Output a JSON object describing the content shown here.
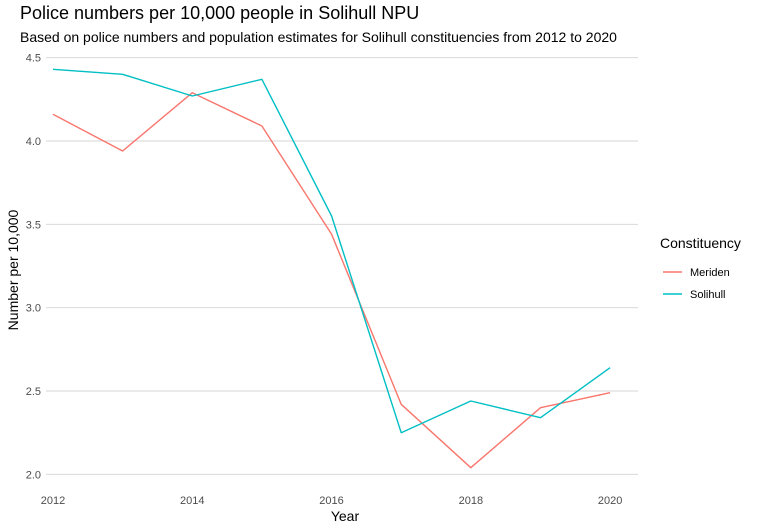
{
  "chart_data": {
    "type": "line",
    "title": "Police numbers per 10,000 people in Solihull NPU",
    "subtitle": "Based on police numbers and population estimates for Solihull constituencies from 2012 to 2020",
    "xlabel": "Year",
    "ylabel": "Number per 10,000",
    "x": [
      2012,
      2013,
      2014,
      2015,
      2016,
      2017,
      2018,
      2019,
      2020
    ],
    "xticks": [
      2012,
      2014,
      2016,
      2018,
      2020
    ],
    "xtick_labels": [
      "2012",
      "2014",
      "2016",
      "2018",
      "2020"
    ],
    "yticks": [
      2.0,
      2.5,
      3.0,
      3.5,
      4.0,
      4.5
    ],
    "ytick_labels": [
      "2.0",
      "2.5",
      "3.0",
      "3.5",
      "4.0",
      "4.5"
    ],
    "xlim": [
      2011.9,
      2020.4
    ],
    "ylim": [
      1.96,
      4.51
    ],
    "grid": "horizontal",
    "legend": {
      "title": "Constituency",
      "placement": "right"
    },
    "series": [
      {
        "name": "Meriden",
        "color": "#F8766D",
        "values": [
          4.16,
          3.94,
          4.29,
          4.09,
          3.44,
          2.42,
          2.04,
          2.4,
          2.49
        ]
      },
      {
        "name": "Solihull",
        "color": "#00BFC4",
        "values": [
          4.43,
          4.4,
          4.27,
          4.37,
          3.55,
          2.25,
          2.44,
          2.34,
          2.64
        ]
      }
    ]
  }
}
